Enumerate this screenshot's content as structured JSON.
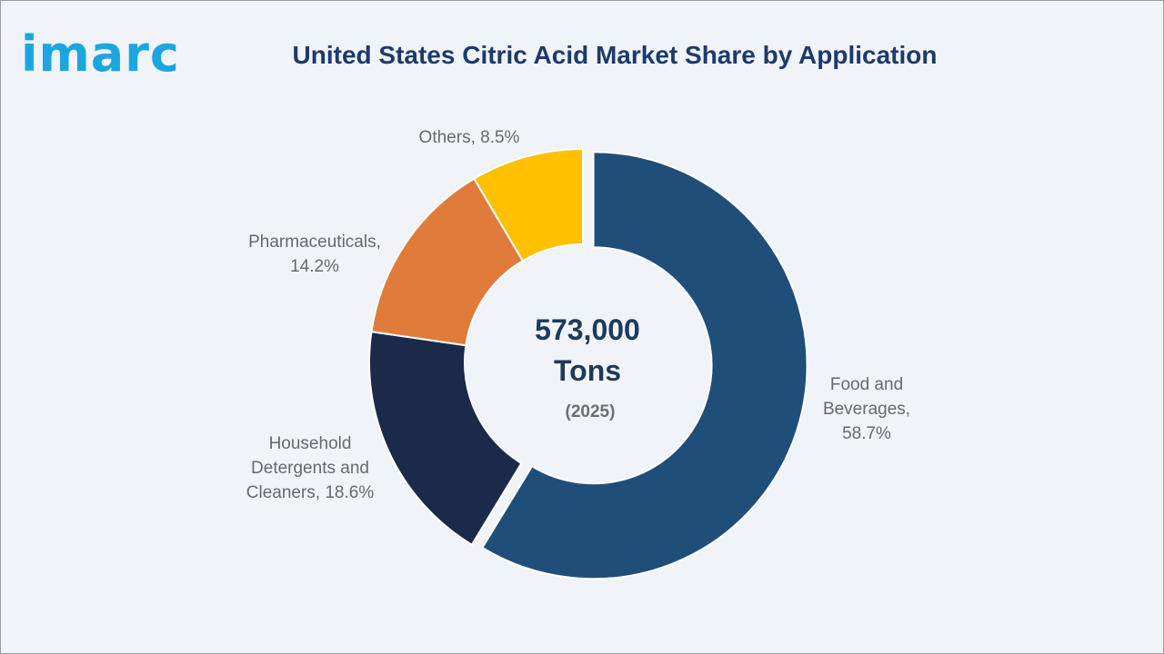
{
  "brand": {
    "logo_text": "imarc"
  },
  "chart_data": {
    "type": "pie",
    "title": "United States Citric Acid Market Share by Application",
    "donut": true,
    "center": {
      "value": "573,000",
      "unit": "Tons",
      "year": "(2025)"
    },
    "slices": [
      {
        "label": "Food and Beverages",
        "value": 58.7,
        "label_lines": [
          "Food and",
          "Beverages,",
          "58.7%"
        ],
        "color": "#1f4e79",
        "exploded": true
      },
      {
        "label": "Household Detergents and Cleaners",
        "value": 18.6,
        "label_lines": [
          "Household",
          "Detergents and",
          "Cleaners, 18.6%"
        ],
        "color": "#1b2a4a",
        "exploded": false
      },
      {
        "label": "Pharmaceuticals",
        "value": 14.2,
        "label_lines": [
          "Pharmaceuticals,",
          "14.2%"
        ],
        "color": "#e07b39",
        "exploded": false
      },
      {
        "label": "Others",
        "value": 8.5,
        "label_lines": [
          "Others, 8.5%"
        ],
        "color": "#ffc000",
        "exploded": false
      }
    ]
  }
}
